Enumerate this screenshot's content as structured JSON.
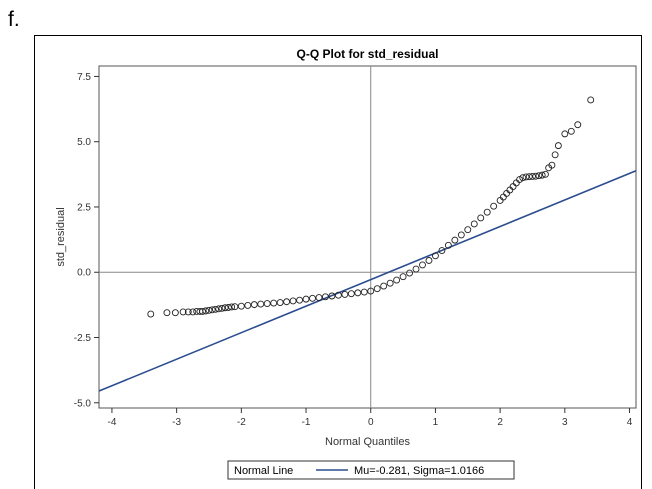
{
  "figure_label": "f.",
  "chart_data": {
    "type": "scatter",
    "title": "Q-Q Plot for std_residual",
    "xlabel": "Normal Quantiles",
    "ylabel": "std_residual",
    "xlim": [
      -4.2,
      4.1
    ],
    "ylim": [
      -5.2,
      7.9
    ],
    "xticks": [
      -4,
      -3,
      -2,
      -1,
      0,
      1,
      2,
      3,
      4
    ],
    "xtick_labels": [
      "-4",
      "-3",
      "-2",
      "-1",
      "0",
      "1",
      "2",
      "3",
      "4"
    ],
    "yticks": [
      -5.0,
      -2.5,
      0.0,
      2.5,
      5.0,
      7.5
    ],
    "ytick_labels": [
      "-5.0",
      "-2.5",
      "0.0",
      "2.5",
      "5.0",
      "7.5"
    ],
    "reference_lines": {
      "x": 0,
      "y": 0
    },
    "grid": false,
    "legend_position": "bottom",
    "series": [
      {
        "name": "std_residual",
        "marker": "circle",
        "x": [
          -3.4,
          -3.15,
          -3.02,
          -2.9,
          -2.82,
          -2.75,
          -2.69,
          -2.64,
          -2.6,
          -2.55,
          -2.5,
          -2.45,
          -2.4,
          -2.35,
          -2.3,
          -2.25,
          -2.2,
          -2.15,
          -2.1,
          -2.0,
          -1.9,
          -1.8,
          -1.7,
          -1.6,
          -1.5,
          -1.4,
          -1.3,
          -1.2,
          -1.1,
          -1.0,
          -0.9,
          -0.8,
          -0.7,
          -0.6,
          -0.5,
          -0.4,
          -0.3,
          -0.2,
          -0.1,
          0.0,
          0.1,
          0.2,
          0.3,
          0.4,
          0.5,
          0.6,
          0.7,
          0.8,
          0.9,
          1.0,
          1.1,
          1.2,
          1.3,
          1.4,
          1.5,
          1.6,
          1.7,
          1.8,
          1.9,
          2.0,
          2.05,
          2.1,
          2.15,
          2.2,
          2.25,
          2.3,
          2.35,
          2.4,
          2.45,
          2.5,
          2.55,
          2.6,
          2.65,
          2.7,
          2.75,
          2.8,
          2.85,
          2.9,
          3.0,
          3.1,
          3.2,
          3.4
        ],
        "y": [
          -1.6,
          -1.55,
          -1.55,
          -1.52,
          -1.52,
          -1.52,
          -1.5,
          -1.5,
          -1.5,
          -1.48,
          -1.46,
          -1.44,
          -1.42,
          -1.4,
          -1.38,
          -1.36,
          -1.35,
          -1.33,
          -1.32,
          -1.3,
          -1.27,
          -1.24,
          -1.22,
          -1.2,
          -1.18,
          -1.16,
          -1.13,
          -1.1,
          -1.07,
          -1.03,
          -1.0,
          -0.97,
          -0.94,
          -0.91,
          -0.88,
          -0.85,
          -0.82,
          -0.79,
          -0.76,
          -0.72,
          -0.63,
          -0.53,
          -0.42,
          -0.3,
          -0.17,
          -0.03,
          0.12,
          0.28,
          0.45,
          0.63,
          0.83,
          1.03,
          1.23,
          1.43,
          1.63,
          1.85,
          2.08,
          2.3,
          2.53,
          2.75,
          2.88,
          3.02,
          3.15,
          3.28,
          3.42,
          3.55,
          3.62,
          3.65,
          3.66,
          3.67,
          3.68,
          3.7,
          3.72,
          3.75,
          4.0,
          4.1,
          4.5,
          4.85,
          5.3,
          5.4,
          5.65,
          6.6
        ]
      }
    ],
    "fit_line": {
      "name": "Normal Line",
      "mu": -0.281,
      "sigma": 1.0166,
      "color": "#2b4d8f"
    },
    "legend": {
      "label": "Normal Line",
      "entry": "Mu=-0.281, Sigma=1.0166"
    }
  }
}
